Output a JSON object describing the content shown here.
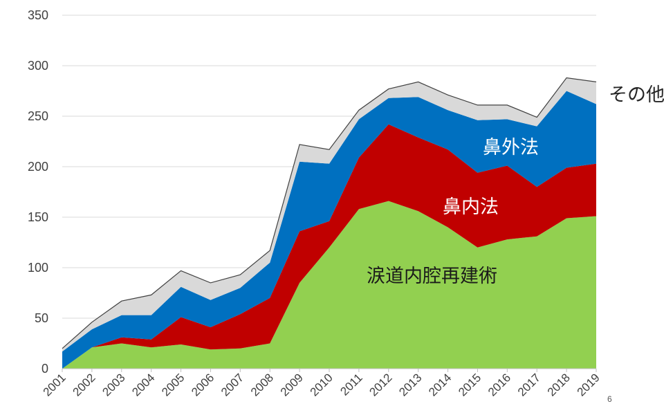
{
  "chart_data": {
    "type": "area",
    "stacked": true,
    "categories": [
      "2001",
      "2002",
      "2003",
      "2004",
      "2005",
      "2006",
      "2007",
      "2008",
      "2009",
      "2010",
      "2011",
      "2012",
      "2013",
      "2014",
      "2015",
      "2016",
      "2017",
      "2018",
      "2019"
    ],
    "ylim": [
      0,
      350
    ],
    "yticks": [
      0,
      50,
      100,
      150,
      200,
      250,
      300,
      350
    ],
    "grid": true,
    "legend": "inline labels",
    "series": [
      {
        "name": "涙道内腔再建術",
        "color": "#92D050",
        "values": [
          0,
          21,
          25,
          21,
          24,
          19,
          20,
          25,
          85,
          120,
          158,
          166,
          156,
          140,
          120,
          128,
          131,
          149,
          151
        ]
      },
      {
        "name": "鼻内法",
        "color": "#C00000",
        "values": [
          0,
          0,
          6,
          8,
          27,
          22,
          34,
          45,
          51,
          26,
          51,
          76,
          73,
          77,
          74,
          73,
          49,
          50,
          52
        ]
      },
      {
        "name": "鼻外法",
        "color": "#0070C0",
        "values": [
          17,
          18,
          22,
          24,
          30,
          27,
          26,
          35,
          69,
          57,
          38,
          26,
          40,
          39,
          52,
          46,
          60,
          76,
          59
        ]
      },
      {
        "name": "その他",
        "color": "#D9D9D9",
        "values": [
          3,
          7,
          14,
          20,
          16,
          17,
          13,
          12,
          17,
          14,
          9,
          9,
          15,
          15,
          15,
          14,
          9,
          13,
          22
        ]
      }
    ]
  },
  "page_number": "6"
}
